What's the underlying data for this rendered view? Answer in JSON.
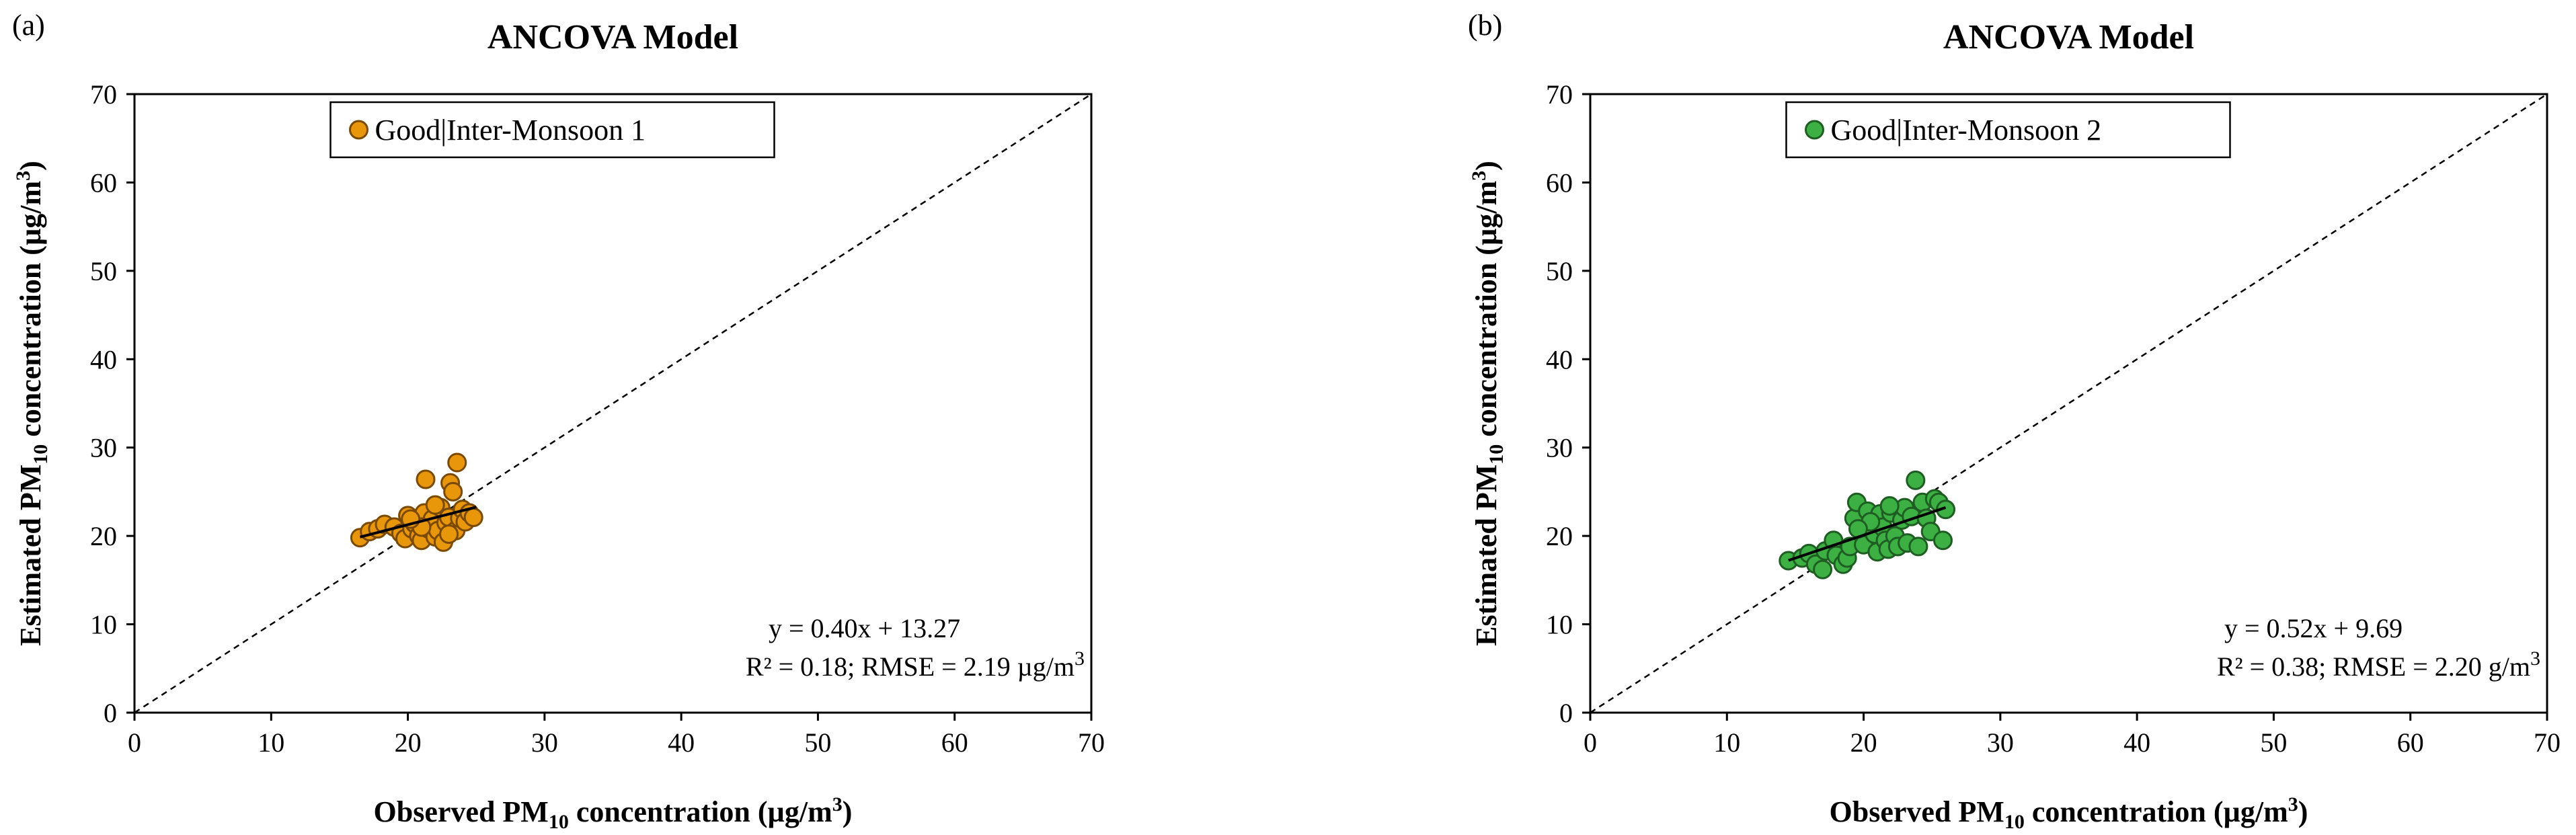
{
  "chart_data": [
    {
      "panel_label": "(a)",
      "type": "scatter",
      "title": "ANCOVA Model",
      "xlabel": {
        "pre": "Observed PM",
        "sub": "10",
        "post": " concentration (µg/m",
        "sup": "3",
        "end": ")"
      },
      "ylabel": {
        "pre": "Estimated PM",
        "sub": "10",
        "post": " concentration (µg/m",
        "sup": "3",
        "end": ")"
      },
      "xlim": [
        0,
        70
      ],
      "ylim": [
        0,
        70
      ],
      "xticks": [
        0,
        10,
        20,
        30,
        40,
        50,
        60,
        70
      ],
      "yticks": [
        0,
        10,
        20,
        30,
        40,
        50,
        60,
        70
      ],
      "grid": false,
      "legend": {
        "position": "top-center",
        "label": "Good|Inter-Monsoon 1"
      },
      "equation": "y = 0.40x + 13.27",
      "stats": {
        "pre": "R² = 0.18; RMSE = 2.19 µg/m",
        "sup": "3"
      },
      "marker_color": "#E8960A",
      "marker_edge": "#7A4A00",
      "fit": {
        "slope": 0.4,
        "intercept": 13.27,
        "x_range": [
          16.5,
          25
        ]
      },
      "identity_line": true,
      "series": [
        {
          "name": "Good|Inter-Monsoon 1",
          "points": [
            [
              16.5,
              19.8
            ],
            [
              17.2,
              20.5
            ],
            [
              17.8,
              20.8
            ],
            [
              18.3,
              21.3
            ],
            [
              19.0,
              21.0
            ],
            [
              19.5,
              20.3
            ],
            [
              19.8,
              19.7
            ],
            [
              20.0,
              22.3
            ],
            [
              20.3,
              20.8
            ],
            [
              20.5,
              21.4
            ],
            [
              20.8,
              20.0
            ],
            [
              21.0,
              19.5
            ],
            [
              21.2,
              22.6
            ],
            [
              21.3,
              26.4
            ],
            [
              21.5,
              20.8
            ],
            [
              21.8,
              21.9
            ],
            [
              22.0,
              19.9
            ],
            [
              22.2,
              20.6
            ],
            [
              22.4,
              23.2
            ],
            [
              22.6,
              19.3
            ],
            [
              22.8,
              21.5
            ],
            [
              23.0,
              22.1
            ],
            [
              23.1,
              26.0
            ],
            [
              23.3,
              25.0
            ],
            [
              23.5,
              20.6
            ],
            [
              23.6,
              28.3
            ],
            [
              23.8,
              22.0
            ],
            [
              24.0,
              23.0
            ],
            [
              24.2,
              21.6
            ],
            [
              24.5,
              22.6
            ],
            [
              24.8,
              22.1
            ],
            [
              22.0,
              23.5
            ],
            [
              23.0,
              20.2
            ],
            [
              21.0,
              21.0
            ],
            [
              20.2,
              21.9
            ]
          ]
        }
      ]
    },
    {
      "panel_label": "(b)",
      "type": "scatter",
      "title": "ANCOVA Model",
      "xlabel": {
        "pre": "Observed PM",
        "sub": "10",
        "post": " concentration (µg/m",
        "sup": "3",
        "end": ")"
      },
      "ylabel": {
        "pre": "Estimated PM",
        "sub": "10",
        "post": " concentration (µg/m",
        "sup": "3",
        "end": ")"
      },
      "xlim": [
        0,
        70
      ],
      "ylim": [
        0,
        70
      ],
      "xticks": [
        0,
        10,
        20,
        30,
        40,
        50,
        60,
        70
      ],
      "yticks": [
        0,
        10,
        20,
        30,
        40,
        50,
        60,
        70
      ],
      "grid": false,
      "legend": {
        "position": "top-center",
        "label": "Good|Inter-Monsoon 2"
      },
      "equation": "y = 0.52x + 9.69",
      "stats": {
        "pre": "R² = 0.38; RMSE = 2.20 g/m",
        "sup": "3"
      },
      "marker_color": "#3CB043",
      "marker_edge": "#1E5E22",
      "fit": {
        "slope": 0.52,
        "intercept": 9.69,
        "x_range": [
          14.5,
          26
        ]
      },
      "identity_line": true,
      "series": [
        {
          "name": "Good|Inter-Monsoon 2",
          "points": [
            [
              14.5,
              17.2
            ],
            [
              15.5,
              17.5
            ],
            [
              16.0,
              18.0
            ],
            [
              16.5,
              16.8
            ],
            [
              17.0,
              16.2
            ],
            [
              17.2,
              18.3
            ],
            [
              17.8,
              19.5
            ],
            [
              18.0,
              17.8
            ],
            [
              18.5,
              16.8
            ],
            [
              18.8,
              17.5
            ],
            [
              19.0,
              18.8
            ],
            [
              19.3,
              22.0
            ],
            [
              19.5,
              23.8
            ],
            [
              19.8,
              20.5
            ],
            [
              20.0,
              19.0
            ],
            [
              20.3,
              22.8
            ],
            [
              20.6,
              21.5
            ],
            [
              20.8,
              20.2
            ],
            [
              21.0,
              18.2
            ],
            [
              21.2,
              22.5
            ],
            [
              21.4,
              21.0
            ],
            [
              21.6,
              19.5
            ],
            [
              21.8,
              18.5
            ],
            [
              22.0,
              22.6
            ],
            [
              22.3,
              20.0
            ],
            [
              22.5,
              18.8
            ],
            [
              22.8,
              21.8
            ],
            [
              23.0,
              23.2
            ],
            [
              23.2,
              19.2
            ],
            [
              23.5,
              22.2
            ],
            [
              23.8,
              26.3
            ],
            [
              24.0,
              18.8
            ],
            [
              24.3,
              23.8
            ],
            [
              24.6,
              22.0
            ],
            [
              24.9,
              20.5
            ],
            [
              25.2,
              24.2
            ],
            [
              25.5,
              23.8
            ],
            [
              25.8,
              19.5
            ],
            [
              26.0,
              23.0
            ],
            [
              20.5,
              21.6
            ],
            [
              21.9,
              23.4
            ],
            [
              19.6,
              20.8
            ]
          ]
        }
      ]
    }
  ]
}
